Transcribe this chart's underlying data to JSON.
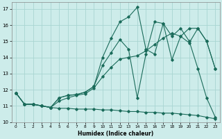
{
  "xlabel": "Humidex (Indice chaleur)",
  "xlim": [
    -0.5,
    23.5
  ],
  "ylim": [
    10,
    17.4
  ],
  "yticks": [
    10,
    11,
    12,
    13,
    14,
    15,
    16,
    17
  ],
  "xticks": [
    0,
    1,
    2,
    3,
    4,
    5,
    6,
    7,
    8,
    9,
    10,
    11,
    12,
    13,
    14,
    15,
    16,
    17,
    18,
    19,
    20,
    21,
    22,
    23
  ],
  "bg_color": "#cdecea",
  "grid_color": "#a8d5d2",
  "line_color": "#1a6b5a",
  "line1_x": [
    0,
    1,
    2,
    3,
    4,
    5,
    6,
    7,
    8,
    9,
    10,
    11,
    12,
    13,
    14,
    15,
    16,
    17,
    18,
    19,
    20,
    21,
    22,
    23
  ],
  "line1_y": [
    11.8,
    11.1,
    11.1,
    11.0,
    10.9,
    10.85,
    10.85,
    10.8,
    10.8,
    10.8,
    10.75,
    10.75,
    10.7,
    10.65,
    10.65,
    10.6,
    10.6,
    10.55,
    10.55,
    10.5,
    10.45,
    10.4,
    10.3,
    10.2
  ],
  "line2_x": [
    0,
    1,
    2,
    3,
    4,
    5,
    6,
    7,
    8,
    9,
    10,
    11,
    12,
    13,
    14,
    15,
    16,
    17,
    18,
    19,
    20,
    21,
    22,
    23
  ],
  "line2_y": [
    11.8,
    11.1,
    11.1,
    11.0,
    10.9,
    11.5,
    11.65,
    11.7,
    11.85,
    12.2,
    13.5,
    14.3,
    15.1,
    14.5,
    11.5,
    14.2,
    16.2,
    16.1,
    15.3,
    15.8,
    15.0,
    13.3,
    11.5,
    10.3
  ],
  "line3_x": [
    0,
    1,
    2,
    3,
    4,
    5,
    6,
    7,
    8,
    9,
    10,
    11,
    12,
    13,
    14,
    15,
    16,
    17,
    18,
    19,
    20,
    21,
    22,
    23
  ],
  "line3_y": [
    11.8,
    11.1,
    11.1,
    11.0,
    10.9,
    11.5,
    11.65,
    11.7,
    11.85,
    12.2,
    14.0,
    15.2,
    16.2,
    16.5,
    17.1,
    14.5,
    14.2,
    16.1,
    13.85,
    15.3,
    15.8,
    15.8,
    15.0,
    13.3
  ],
  "line4_x": [
    0,
    1,
    2,
    3,
    4,
    5,
    6,
    7,
    8,
    9,
    10,
    11,
    12,
    13,
    14,
    15,
    16,
    17,
    18,
    19,
    20,
    21,
    22,
    23
  ],
  "line4_y": [
    11.8,
    11.1,
    11.1,
    11.0,
    10.9,
    11.3,
    11.5,
    11.65,
    11.75,
    12.1,
    12.8,
    13.4,
    13.9,
    14.0,
    14.1,
    14.4,
    14.8,
    15.2,
    15.5,
    15.3,
    14.9,
    15.8,
    15.0,
    13.3
  ]
}
